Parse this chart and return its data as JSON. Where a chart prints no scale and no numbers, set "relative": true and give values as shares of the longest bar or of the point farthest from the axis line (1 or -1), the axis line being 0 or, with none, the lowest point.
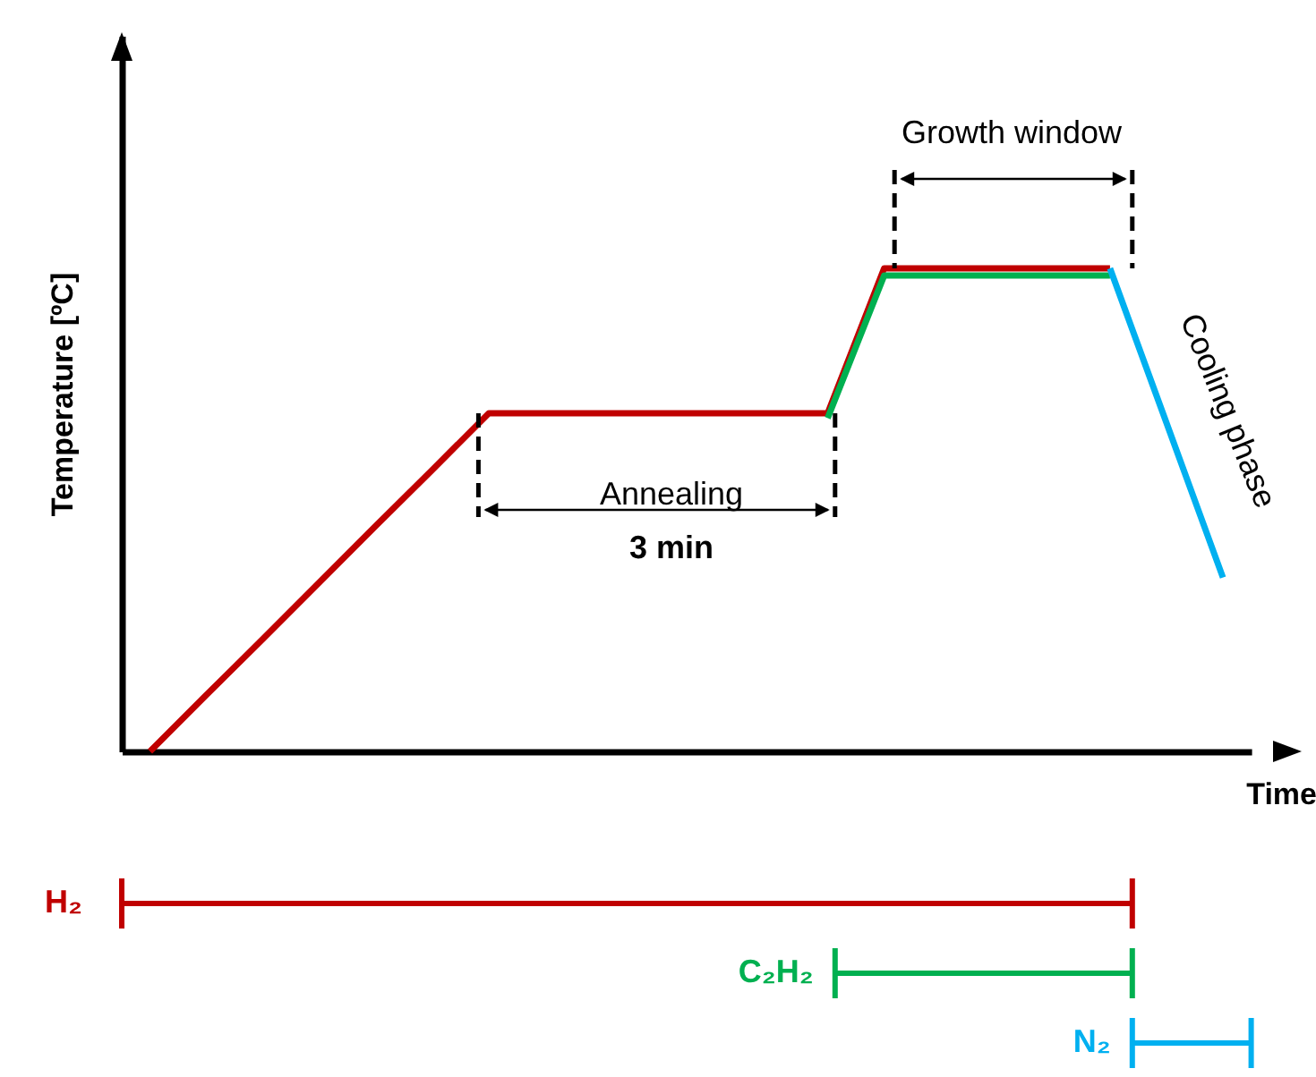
{
  "chart_data": [
    {
      "type": "line",
      "ylabel": "Temperature [ºC]",
      "xlabel": "Time",
      "relative": true,
      "marker": "none",
      "categories": [
        null,
        null,
        null,
        null,
        null,
        null,
        null,
        null,
        null,
        null,
        null,
        null,
        null,
        null,
        null,
        null,
        null,
        null,
        null,
        null
      ],
      "annotations": [
        "Growth window",
        "Annealing",
        "3 min",
        "Cooling phase"
      ],
      "series": [
        {
          "color": "#c00000",
          "values": [
            0,
            0.117,
            0.233,
            0.35,
            0.467,
            0.583,
            0.7,
            0.7,
            0.7,
            0.7,
            0.7,
            0.7,
            0.7,
            1,
            1,
            1,
            1,
            1,
            null,
            null
          ]
        },
        {
          "color": "#00b050",
          "values": [
            null,
            null,
            null,
            null,
            null,
            null,
            null,
            null,
            null,
            null,
            null,
            null,
            0.69,
            0.985,
            0.985,
            0.985,
            0.985,
            0.985,
            null,
            null
          ]
        },
        {
          "color": "#00b0f0",
          "values": [
            null,
            null,
            null,
            null,
            null,
            null,
            null,
            null,
            null,
            null,
            null,
            null,
            null,
            null,
            null,
            null,
            null,
            1,
            0.68,
            0.36
          ]
        }
      ]
    },
    {
      "type": "other",
      "annotations": [
        "H₂",
        "C₂H₂",
        "N₂"
      ]
    }
  ]
}
